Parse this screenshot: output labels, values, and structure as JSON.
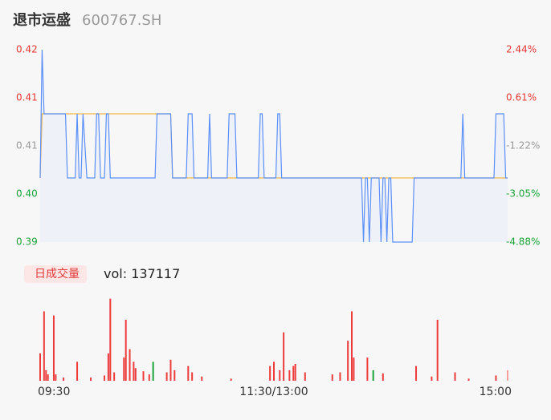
{
  "header": {
    "name": "退市运盛",
    "code": "600767.SH"
  },
  "chart_data": [
    {
      "type": "line",
      "xlim": [
        0,
        240
      ],
      "ylim": [
        0.39,
        0.42
      ],
      "yticks": [
        0.42,
        {
          "value": 0.4125,
          "label": "0.41"
        },
        {
          "value": 0.405,
          "label": "0.41"
        },
        {
          "value": 0.3975,
          "label": "0.40"
        },
        0.39
      ],
      "y2lim": [
        -4.88,
        2.44
      ],
      "y2ticks": [
        {
          "value": 2.44,
          "label": "2.44%"
        },
        {
          "value": 0.61,
          "label": "0.61%"
        },
        {
          "value": -1.22,
          "label": "-1.22%"
        },
        {
          "value": -3.05,
          "label": "-3.05%"
        },
        {
          "value": -4.88,
          "label": "-4.88%"
        }
      ],
      "series": [
        {
          "color": "#5b8ff9",
          "x": [
            0,
            1,
            2,
            13,
            14,
            18,
            19,
            20,
            21,
            22,
            24,
            28,
            29,
            30,
            31,
            33,
            34,
            35,
            36,
            59,
            60,
            67,
            68,
            75,
            76,
            78,
            79,
            86,
            87,
            88,
            96,
            97,
            100,
            101,
            112,
            113,
            114,
            115,
            121,
            122,
            123,
            124,
            165,
            166,
            167,
            168,
            169,
            170,
            174,
            175,
            176,
            177,
            178,
            179,
            180,
            181,
            191,
            192,
            216,
            217,
            218,
            233,
            234,
            238,
            239,
            240
          ],
          "values": [
            0.4,
            0.42,
            0.41,
            0.41,
            0.4,
            0.4,
            0.41,
            0.4,
            0.4,
            0.41,
            0.4,
            0.4,
            0.41,
            0.41,
            0.4,
            0.4,
            0.41,
            0.41,
            0.4,
            0.4,
            0.41,
            0.41,
            0.4,
            0.4,
            0.41,
            0.41,
            0.4,
            0.4,
            0.41,
            0.4,
            0.4,
            0.41,
            0.41,
            0.4,
            0.4,
            0.41,
            0.41,
            0.4,
            0.4,
            0.41,
            0.41,
            0.4,
            0.4,
            0.39,
            0.4,
            0.4,
            0.39,
            0.4,
            0.4,
            0.39,
            0.4,
            0.4,
            0.39,
            0.4,
            0.4,
            0.39,
            0.39,
            0.4,
            0.4,
            0.41,
            0.4,
            0.4,
            0.41,
            0.41,
            0.4,
            0.4
          ]
        },
        {
          "color": "#f5b94a",
          "x": [
            0,
            1,
            67,
            68,
            240
          ],
          "values": [
            0.4,
            0.41,
            0.41,
            0.4,
            0.4
          ]
        }
      ]
    },
    {
      "type": "bar",
      "badge": "日成交量",
      "volume_label": "vol:",
      "volume_total": 137117,
      "xlim": [
        0,
        240
      ],
      "ylim": [
        0,
        4000
      ],
      "xticks": [
        {
          "value": 0,
          "label": "09:30"
        },
        {
          "value": 120,
          "label": "11:30/13:00"
        },
        {
          "value": 240,
          "label": "15:00"
        }
      ],
      "x": [
        0,
        2,
        3,
        4,
        7,
        8,
        12,
        19,
        26,
        33,
        35,
        36,
        38,
        43,
        44,
        46,
        48,
        49,
        53,
        56,
        58,
        65,
        67,
        69,
        76,
        78,
        83,
        98,
        118,
        120,
        123,
        125,
        128,
        130,
        131,
        136,
        150,
        154,
        158,
        160,
        161,
        168,
        171,
        176,
        193,
        201,
        204,
        213,
        220,
        234,
        240
      ],
      "values": [
        1300,
        3300,
        500,
        300,
        3100,
        300,
        150,
        900,
        150,
        250,
        1300,
        3900,
        400,
        1100,
        2900,
        1500,
        900,
        600,
        450,
        300,
        900,
        400,
        1000,
        500,
        700,
        400,
        200,
        100,
        700,
        900,
        500,
        2300,
        500,
        700,
        800,
        400,
        300,
        400,
        1900,
        3300,
        1100,
        1100,
        500,
        350,
        700,
        200,
        2900,
        400,
        100,
        250,
        500
      ],
      "colors": [
        "#ee3b3b",
        "#ee3b3b",
        "#ee3b3b",
        "#ee3b3b",
        "#ee3b3b",
        "#ee3b3b",
        "#ee3b3b",
        "#ee3b3b",
        "#ee3b3b",
        "#ee3b3b",
        "#ee3b3b",
        "#ee3b3b",
        "#ee3b3b",
        "#ee3b3b",
        "#ee3b3b",
        "#ee3b3b",
        "#ee3b3b",
        "#ee3b3b",
        "#ee3b3b",
        "#ee3b3b",
        "#1aa33a",
        "#ee3b3b",
        "#ee3b3b",
        "#ee3b3b",
        "#ee3b3b",
        "#ee3b3b",
        "#ee3b3b",
        "#ee3b3b",
        "#ee3b3b",
        "#ee3b3b",
        "#ee3b3b",
        "#ee3b3b",
        "#ee3b3b",
        "#ee3b3b",
        "#ee3b3b",
        "#ee3b3b",
        "#ee3b3b",
        "#ee3b3b",
        "#ee3b3b",
        "#ee3b3b",
        "#ee3b3b",
        "#ee3b3b",
        "#1aa33a",
        "#ee3b3b",
        "#ee3b3b",
        "#ee3b3b",
        "#ee3b3b",
        "#ee3b3b",
        "#ee3b3b",
        "#ee3b3b",
        "#f7a0a0"
      ]
    }
  ]
}
